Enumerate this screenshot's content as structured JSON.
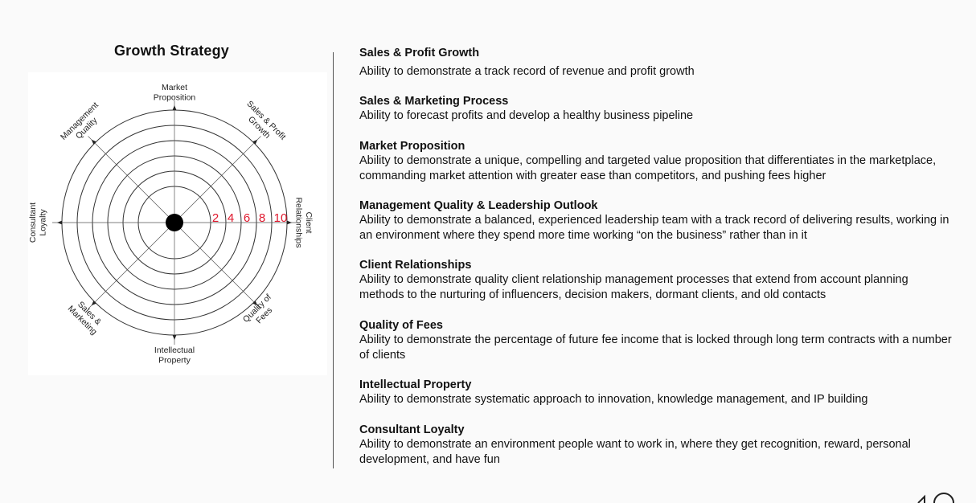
{
  "left": {
    "title": "Growth Strategy"
  },
  "wheel": {
    "spokes": [
      {
        "lines": [
          "Market",
          "Proposition"
        ]
      },
      {
        "lines": [
          "Sales & Profit",
          "Growth"
        ]
      },
      {
        "lines": [
          "Client",
          "Relationships"
        ]
      },
      {
        "lines": [
          "Quality of",
          "Fees"
        ]
      },
      {
        "lines": [
          "Intellectual",
          "Property"
        ]
      },
      {
        "lines": [
          "Sales &",
          "Marketing"
        ]
      },
      {
        "lines": [
          "Consultant",
          "Loyalty"
        ]
      },
      {
        "lines": [
          "Management",
          "Quality"
        ]
      }
    ],
    "scale": [
      "2",
      "4",
      "6",
      "8",
      "10"
    ],
    "accent_color": "#e0182d"
  },
  "right": {
    "items": [
      {
        "heading": "Sales & Profit Growth",
        "desc": "Ability to demonstrate a track record of revenue and profit growth"
      },
      {
        "heading": "Sales & Marketing Process",
        "desc": "Ability to forecast profits and develop a healthy business pipeline"
      },
      {
        "heading": "Market Proposition",
        "desc": "Ability to demonstrate a unique, compelling and targeted value proposition that differentiates in the marketplace, commanding market attention with greater ease than competitors, and pushing fees higher"
      },
      {
        "heading": "Management Quality & Leadership Outlook",
        "desc": "Ability to demonstrate a balanced, experienced leadership team with a track record of delivering results, working in an environment where they spend more time working “on the business” rather than in it"
      },
      {
        "heading": "Client Relationships",
        "desc": "Ability to demonstrate quality client relationship management processes that extend from account planning methods to the nurturing of influencers, decision makers, dormant clients, and old contacts"
      },
      {
        "heading": "Quality of Fees",
        "desc": "Ability to demonstrate the percentage of future fee income that is locked through long term contracts with a number of clients"
      },
      {
        "heading": "Intellectual Property",
        "desc": "Ability to demonstrate systematic approach to innovation, knowledge management, and IP building"
      },
      {
        "heading": "Consultant Loyalty",
        "desc": "Ability to demonstrate an environment people want to work in, where they get recognition, reward, personal development, and have fun"
      }
    ]
  }
}
